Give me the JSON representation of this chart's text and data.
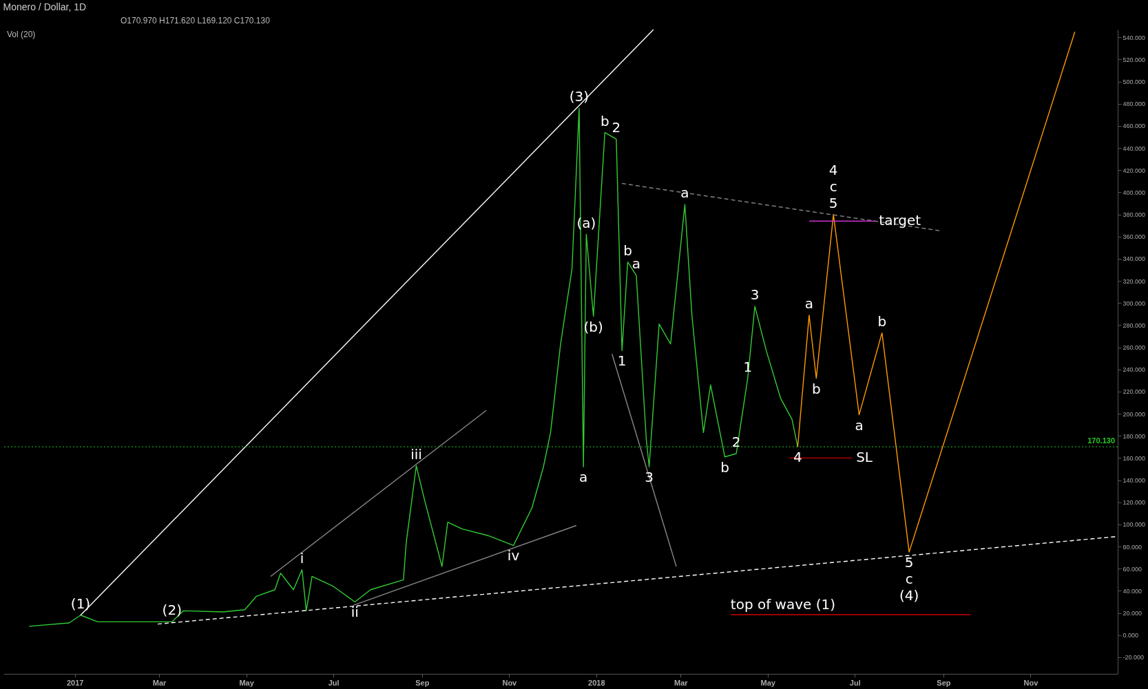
{
  "chart_data": {
    "type": "line",
    "title": "Monero / Dollar, 1D",
    "annotations": [
      "O170.970 H171.620 L169.120 C170.130",
      "Vol (20)",
      {
        "text": "(1)",
        "x": "2017-01-05",
        "y": 18
      },
      {
        "text": "(2)",
        "x": "2017-03-10",
        "y": 12
      },
      {
        "text": "i",
        "x": "2017-06-09",
        "y": 59
      },
      {
        "text": "ii",
        "x": "2017-07-16",
        "y": 30
      },
      {
        "text": "iii",
        "x": "2017-08-28",
        "y": 153
      },
      {
        "text": "iv",
        "x": "2017-11-04",
        "y": 81
      },
      {
        "text": "(3)",
        "x": "2017-12-20",
        "y": 476
      },
      {
        "text": "a",
        "x": "2017-12-23",
        "y": 152
      },
      {
        "text": "(a)",
        "x": "2017-12-25",
        "y": 362
      },
      {
        "text": "(b)",
        "x": "2017-12-30",
        "y": 288
      },
      {
        "text": "b",
        "x": "2018-01-07",
        "y": 454
      },
      {
        "text": "2",
        "x": "2018-01-15",
        "y": 448
      },
      {
        "text": "1",
        "x": "2018-01-19",
        "y": 257
      },
      {
        "text": "b",
        "x": "2018-01-23",
        "y": 337
      },
      {
        "text": "a",
        "x": "2018-01-29",
        "y": 325
      },
      {
        "text": "3",
        "x": "2018-02-07",
        "y": 152
      },
      {
        "text": "a",
        "x": "2018-03-04",
        "y": 389
      },
      {
        "text": "b",
        "x": "2018-04-01",
        "y": 161
      },
      {
        "text": "2",
        "x": "2018-04-09",
        "y": 164
      },
      {
        "text": "1",
        "x": "2018-04-17",
        "y": 232
      },
      {
        "text": "3",
        "x": "2018-04-22",
        "y": 297
      },
      {
        "text": "4",
        "x": "2018-05-22",
        "y": 170
      },
      {
        "text": "a",
        "x": "2018-05-30",
        "y": 289
      },
      {
        "text": "b",
        "x": "2018-06-04",
        "y": 232
      },
      {
        "text": "5",
        "x": "2018-06-16",
        "y": 380
      },
      {
        "text": "c",
        "x": "2018-06-16",
        "y": 380
      },
      {
        "text": "4",
        "x": "2018-06-16",
        "y": 380
      },
      {
        "text": "a",
        "x": "2018-07-04",
        "y": 199
      },
      {
        "text": "b",
        "x": "2018-07-20",
        "y": 273
      },
      {
        "text": "5",
        "x": "2018-08-08",
        "y": 75
      },
      {
        "text": "c",
        "x": "2018-08-08",
        "y": 75
      },
      {
        "text": "(4)",
        "x": "2018-08-08",
        "y": 75
      },
      {
        "text": "target",
        "x": "2018-07-15",
        "y": 374
      },
      {
        "text": "SL",
        "x": "2018-06-29",
        "y": 160
      },
      {
        "text": "top of wave (1)",
        "x": "2018-04-05",
        "y": 18.5
      }
    ],
    "xlim": [
      "2016-11-12",
      "2019-01-01"
    ],
    "xticks": [
      {
        "value": "2017-01-01",
        "label": "2017"
      },
      {
        "value": "2017-03-01",
        "label": "Mar"
      },
      {
        "value": "2017-05-01",
        "label": "May"
      },
      {
        "value": "2017-07-01",
        "label": "Jul"
      },
      {
        "value": "2017-09-01",
        "label": "Sep"
      },
      {
        "value": "2017-11-01",
        "label": "Nov"
      },
      {
        "value": "2018-01-01",
        "label": "2018"
      },
      {
        "value": "2018-03-01",
        "label": "Mar"
      },
      {
        "value": "2018-05-01",
        "label": "May"
      },
      {
        "value": "2018-07-01",
        "label": "Jul"
      },
      {
        "value": "2018-09-01",
        "label": "Sep"
      },
      {
        "value": "2018-11-01",
        "label": "Nov"
      }
    ],
    "ylim": [
      -35,
      547
    ],
    "yticks": [
      {
        "value": -20,
        "label": "-20.000"
      },
      {
        "value": 0,
        "label": "0.000"
      },
      {
        "value": 20,
        "label": "20.000"
      },
      {
        "value": 40,
        "label": "40.000"
      },
      {
        "value": 60,
        "label": "60.000"
      },
      {
        "value": 80,
        "label": "80.000"
      },
      {
        "value": 100,
        "label": "100.000"
      },
      {
        "value": 120,
        "label": "120.000"
      },
      {
        "value": 140,
        "label": "140.000"
      },
      {
        "value": 160,
        "label": "160.000"
      },
      {
        "value": 180,
        "label": "180.000"
      },
      {
        "value": 200,
        "label": "200.000"
      },
      {
        "value": 220,
        "label": "220.000"
      },
      {
        "value": 240,
        "label": "240.000"
      },
      {
        "value": 260,
        "label": "260.000"
      },
      {
        "value": 280,
        "label": "280.000"
      },
      {
        "value": 300,
        "label": "300.000"
      },
      {
        "value": 320,
        "label": "320.000"
      },
      {
        "value": 340,
        "label": "340.000"
      },
      {
        "value": 360,
        "label": "360.000"
      },
      {
        "value": 380,
        "label": "380.000"
      },
      {
        "value": 400,
        "label": "400.000"
      },
      {
        "value": 420,
        "label": "420.000"
      },
      {
        "value": 440,
        "label": "440.000"
      },
      {
        "value": 460,
        "label": "460.000"
      },
      {
        "value": 480,
        "label": "480.000"
      },
      {
        "value": 500,
        "label": "500.000"
      },
      {
        "value": 520,
        "label": "520.000"
      },
      {
        "value": 540,
        "label": "540.000"
      }
    ],
    "ref_lines": [
      {
        "axis": "y",
        "value": 170.13,
        "label": "170.130",
        "color": "#22cc22",
        "line_style": "dotted"
      }
    ],
    "series": [
      {
        "color": "#33cc33",
        "x": [
          "2016-11-30",
          "2016-12-28",
          "2017-01-05",
          "2017-01-17",
          "2017-02-22",
          "2017-03-10",
          "2017-03-18",
          "2017-04-15",
          "2017-04-30",
          "2017-05-08",
          "2017-05-21",
          "2017-05-25",
          "2017-06-03",
          "2017-06-09",
          "2017-06-12",
          "2017-06-16",
          "2017-07-01",
          "2017-07-16",
          "2017-07-27",
          "2017-08-19",
          "2017-08-21",
          "2017-08-28",
          "2017-09-03",
          "2017-09-15",
          "2017-09-19",
          "2017-09-29",
          "2017-10-17",
          "2017-11-04",
          "2017-11-17",
          "2017-11-25",
          "2017-11-30",
          "2017-12-07",
          "2017-12-15",
          "2017-12-20",
          "2017-12-23",
          "2017-12-25",
          "2017-12-30",
          "2018-01-07",
          "2018-01-15",
          "2018-01-19",
          "2018-01-23",
          "2018-01-29",
          "2018-02-05",
          "2018-02-07",
          "2018-02-14",
          "2018-02-22",
          "2018-03-04",
          "2018-03-09",
          "2018-03-17",
          "2018-03-22",
          "2018-04-01",
          "2018-04-09",
          "2018-04-17",
          "2018-04-22",
          "2018-04-30",
          "2018-05-10",
          "2018-05-18",
          "2018-05-22"
        ],
        "values": [
          8,
          11,
          18,
          12,
          12,
          12,
          22,
          21,
          23,
          35,
          41,
          56,
          41,
          59,
          22,
          53,
          44,
          30,
          41,
          50,
          84,
          153,
          121,
          62,
          102,
          96,
          90,
          81,
          115,
          152,
          183,
          263,
          331,
          476,
          152,
          362,
          288,
          454,
          448,
          257,
          337,
          325,
          177,
          152,
          281,
          263,
          389,
          288,
          183,
          226,
          161,
          164,
          232,
          297,
          257,
          214,
          195,
          170
        ]
      },
      {
        "color": "#ff9900",
        "x": [
          "2018-05-22",
          "2018-05-30",
          "2018-06-04",
          "2018-06-16",
          "2018-07-04",
          "2018-07-20",
          "2018-08-08",
          "2018-12-02"
        ],
        "values": [
          170,
          289,
          232,
          380,
          199,
          273,
          75,
          545
        ]
      },
      {
        "color": "#ffffff",
        "x": [
          "2017-01-05",
          "2018-02-10"
        ],
        "values": [
          18,
          547
        ]
      },
      {
        "color": "#ffffff",
        "line_style": "dashed",
        "x": [
          "2017-02-28",
          "2018-12-31"
        ],
        "values": [
          10,
          89
        ]
      },
      {
        "color": "#888888",
        "x": [
          "2017-05-18",
          "2017-10-16"
        ],
        "values": [
          53,
          203
        ]
      },
      {
        "color": "#888888",
        "x": [
          "2017-07-15",
          "2017-12-18"
        ],
        "values": [
          27,
          99
        ]
      },
      {
        "color": "#888888",
        "x": [
          "2018-01-12",
          "2018-02-26"
        ],
        "values": [
          254,
          62
        ]
      },
      {
        "color": "#888888",
        "line_style": "dashed",
        "x": [
          "2018-01-19",
          "2018-08-31"
        ],
        "values": [
          408,
          365
        ]
      },
      {
        "color": "#cc33cc",
        "x": [
          "2018-05-30",
          "2018-07-15"
        ],
        "values": [
          374,
          374
        ]
      },
      {
        "color": "#cc0000",
        "x": [
          "2018-05-16",
          "2018-06-29"
        ],
        "values": [
          160,
          160
        ]
      },
      {
        "color": "#cc0000",
        "x": [
          "2018-04-05",
          "2018-09-20"
        ],
        "values": [
          18.5,
          18.5
        ]
      }
    ]
  }
}
